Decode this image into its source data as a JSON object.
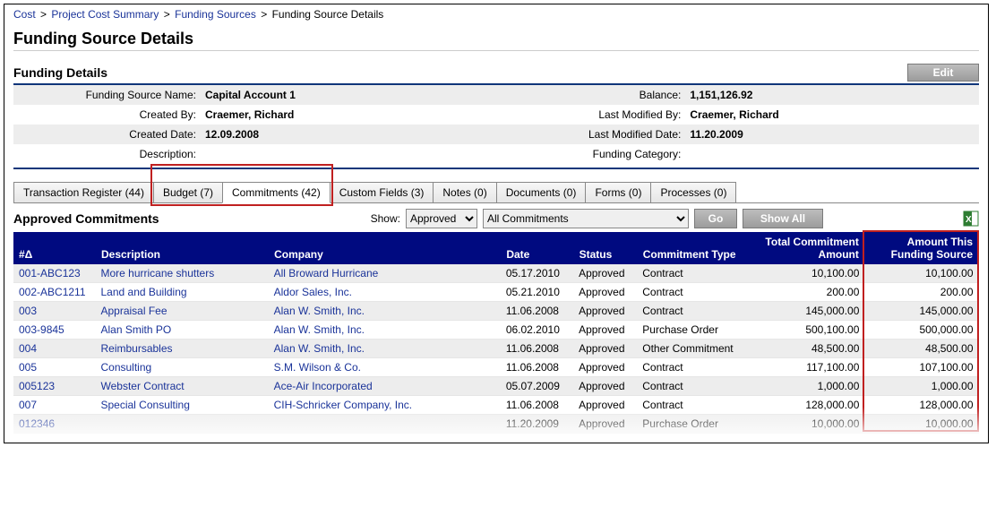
{
  "breadcrumb": [
    {
      "label": "Cost",
      "link": true
    },
    {
      "label": "Project Cost Summary",
      "link": true
    },
    {
      "label": "Funding Sources",
      "link": true
    },
    {
      "label": "Funding Source Details",
      "link": false
    }
  ],
  "page_title": "Funding Source Details",
  "section_title": "Funding Details",
  "edit_label": "Edit",
  "details": {
    "name_label": "Funding Source Name:",
    "name_value": "Capital Account 1",
    "balance_label": "Balance:",
    "balance_value": "1,151,126.92",
    "created_by_label": "Created By:",
    "created_by_value": "Craemer, Richard",
    "modified_by_label": "Last Modified By:",
    "modified_by_value": "Craemer, Richard",
    "created_date_label": "Created Date:",
    "created_date_value": "12.09.2008",
    "modified_date_label": "Last Modified Date:",
    "modified_date_value": "11.20.2009",
    "description_label": "Description:",
    "description_value": "",
    "category_label": "Funding Category:",
    "category_value": ""
  },
  "tabs": [
    {
      "label": "Transaction Register (44)"
    },
    {
      "label": "Budget (7)"
    },
    {
      "label": "Commitments (42)"
    },
    {
      "label": "Custom Fields (3)"
    },
    {
      "label": "Notes (0)"
    },
    {
      "label": "Documents (0)"
    },
    {
      "label": "Forms (0)"
    },
    {
      "label": "Processes (0)"
    }
  ],
  "active_tab_index": 2,
  "highlight_tab_start": 1,
  "highlight_tab_end": 2,
  "grid_section_title": "Approved Commitments",
  "filter": {
    "show_label": "Show:",
    "status_options": [
      "Approved"
    ],
    "status_selected": "Approved",
    "type_options": [
      "All Commitments"
    ],
    "type_selected": "All Commitments",
    "go_label": "Go",
    "showall_label": "Show All"
  },
  "columns": [
    {
      "key": "id",
      "label": "#Δ",
      "cls": "col-id"
    },
    {
      "key": "desc",
      "label": "Description",
      "cls": "col-desc"
    },
    {
      "key": "company",
      "label": "Company",
      "cls": "col-comp"
    },
    {
      "key": "date",
      "label": "Date",
      "cls": "col-date"
    },
    {
      "key": "status",
      "label": "Status",
      "cls": "col-status"
    },
    {
      "key": "ctype",
      "label": "Commitment Type",
      "cls": "col-type"
    },
    {
      "key": "total",
      "label": "Total Commitment Amount",
      "cls": "col-total num"
    },
    {
      "key": "amount",
      "label": "Amount This Funding Source",
      "cls": "col-amt num"
    }
  ],
  "rows": [
    {
      "id": "001-ABC123",
      "desc": "More hurricane shutters",
      "company": "All Broward Hurricane",
      "date": "05.17.2010",
      "status": "Approved",
      "ctype": "Contract",
      "total": "10,100.00",
      "amount": "10,100.00"
    },
    {
      "id": "002-ABC1211",
      "desc": "Land and Building",
      "company": "Aldor Sales, Inc.",
      "date": "05.21.2010",
      "status": "Approved",
      "ctype": "Contract",
      "total": "200.00",
      "amount": "200.00"
    },
    {
      "id": "003",
      "desc": "Appraisal Fee",
      "company": "Alan W. Smith, Inc.",
      "date": "11.06.2008",
      "status": "Approved",
      "ctype": "Contract",
      "total": "145,000.00",
      "amount": "145,000.00"
    },
    {
      "id": "003-9845",
      "desc": "Alan Smith PO",
      "company": "Alan W. Smith, Inc.",
      "date": "06.02.2010",
      "status": "Approved",
      "ctype": "Purchase Order",
      "total": "500,100.00",
      "amount": "500,000.00"
    },
    {
      "id": "004",
      "desc": "Reimbursables",
      "company": "Alan W. Smith, Inc.",
      "date": "11.06.2008",
      "status": "Approved",
      "ctype": "Other Commitment",
      "total": "48,500.00",
      "amount": "48,500.00"
    },
    {
      "id": "005",
      "desc": "Consulting",
      "company": "S.M. Wilson & Co.",
      "date": "11.06.2008",
      "status": "Approved",
      "ctype": "Contract",
      "total": "117,100.00",
      "amount": "107,100.00"
    },
    {
      "id": "005123",
      "desc": "Webster Contract",
      "company": "Ace-Air Incorporated",
      "date": "05.07.2009",
      "status": "Approved",
      "ctype": "Contract",
      "total": "1,000.00",
      "amount": "1,000.00"
    },
    {
      "id": "007",
      "desc": "Special Consulting",
      "company": "CIH-Schricker Company, Inc.",
      "date": "11.06.2008",
      "status": "Approved",
      "ctype": "Contract",
      "total": "128,000.00",
      "amount": "128,000.00"
    },
    {
      "id": "012346",
      "desc": "",
      "company": "",
      "date": "11.20.2009",
      "status": "Approved",
      "ctype": "Purchase Order",
      "total": "10,000.00",
      "amount": "10,000.00"
    }
  ],
  "colors": {
    "header_bg": "#000a80",
    "link": "#1a3399",
    "highlight_border": "#c02020"
  }
}
